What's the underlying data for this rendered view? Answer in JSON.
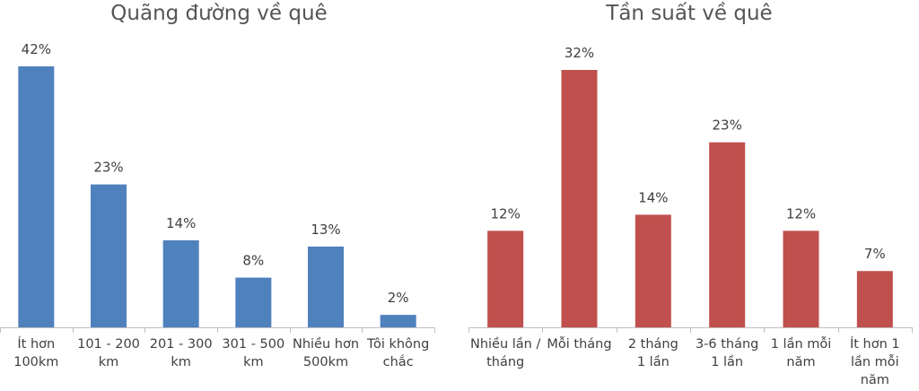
{
  "chart_data": [
    {
      "type": "bar",
      "title": "Quãng đường về quê",
      "categories": [
        [
          "Ít hơn",
          "100km"
        ],
        [
          "101 - 200",
          "km"
        ],
        [
          "201 - 300",
          "km"
        ],
        [
          "301 - 500",
          "km"
        ],
        [
          "Nhiều hơn",
          "500km"
        ],
        [
          "Tôi không",
          "chắc"
        ]
      ],
      "values": [
        42,
        23,
        14,
        8,
        13,
        2
      ],
      "value_labels": [
        "42%",
        "23%",
        "14%",
        "8%",
        "13%",
        "2%"
      ],
      "unit": "%",
      "ylim": [
        0,
        42
      ],
      "color": "#4f81bd",
      "grid": false,
      "yaxis_visible": false
    },
    {
      "type": "bar",
      "title": "Tần suất về quê",
      "categories": [
        [
          "Nhiều lần /",
          "tháng"
        ],
        [
          "Mỗi tháng"
        ],
        [
          "2 tháng",
          "1 lần"
        ],
        [
          "3-6 tháng",
          "1 lần"
        ],
        [
          "1 lần mỗi",
          "năm"
        ],
        [
          "Ít hơn 1",
          "lần mỗi",
          "năm"
        ]
      ],
      "values": [
        12,
        32,
        14,
        23,
        12,
        7
      ],
      "value_labels": [
        "12%",
        "32%",
        "14%",
        "23%",
        "12%",
        "7%"
      ],
      "unit": "%",
      "ylim": [
        0,
        32
      ],
      "color": "#c0504d",
      "grid": false,
      "yaxis_visible": false
    }
  ]
}
